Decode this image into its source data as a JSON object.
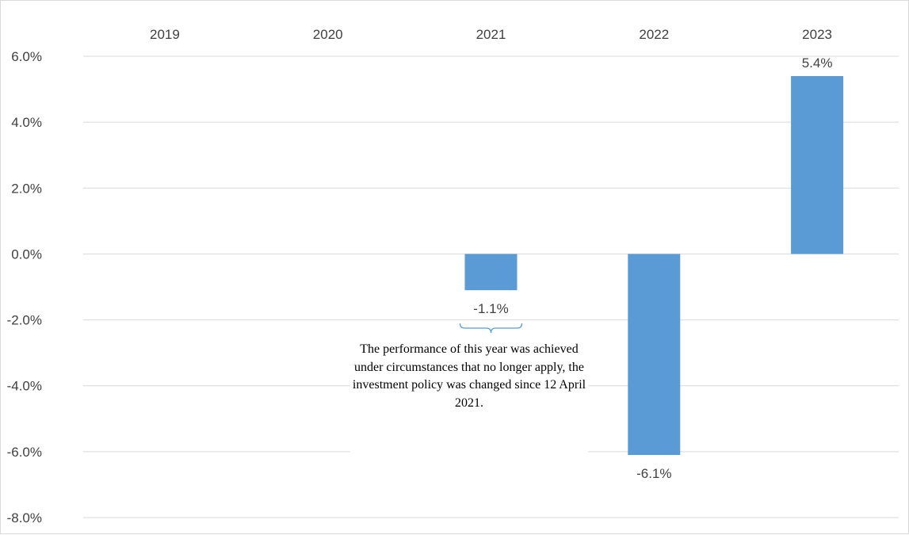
{
  "chart_data": {
    "type": "bar",
    "categories": [
      "2019",
      "2020",
      "2021",
      "2022",
      "2023"
    ],
    "values": [
      null,
      null,
      -1.1,
      -6.1,
      5.4
    ],
    "data_labels": [
      "",
      "",
      "-1.1%",
      "-6.1%",
      "5.4%"
    ],
    "ylim": [
      -8.0,
      6.0
    ],
    "y_ticks": [
      6.0,
      4.0,
      2.0,
      0.0,
      -2.0,
      -4.0,
      -6.0,
      -8.0
    ],
    "y_tick_labels": [
      "6.0%",
      "4.0%",
      "2.0%",
      "0.0%",
      "-2.0%",
      "-4.0%",
      "-6.0%",
      "-8.0%"
    ],
    "category_axis_position": "top",
    "grid": true,
    "legend": "none",
    "bar_color": "#5B9BD5",
    "grid_color": "#d9d9d9",
    "annotation": {
      "category": "2021",
      "text": "The performance of this year was achieved under circumstances that no longer apply, the investment policy was changed since 12 April 2021."
    }
  }
}
